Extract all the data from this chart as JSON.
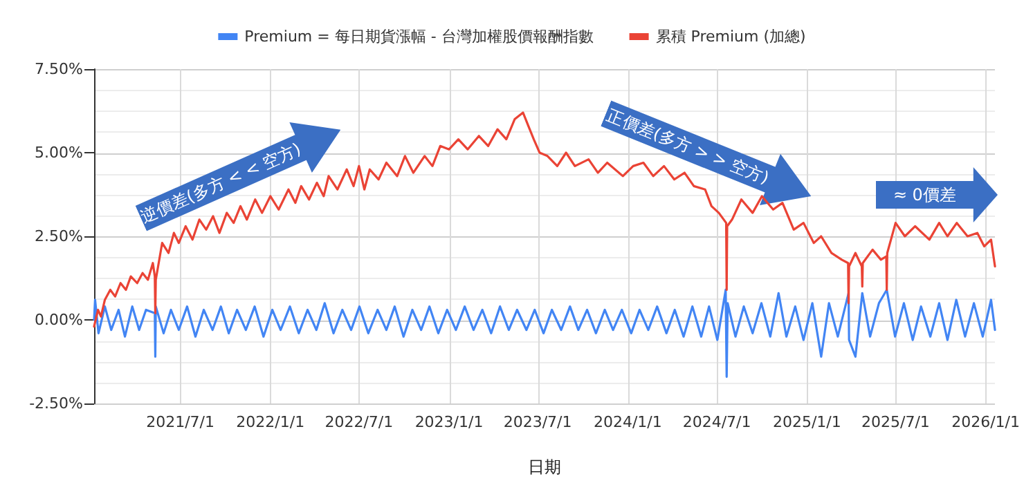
{
  "chart_data": {
    "type": "line",
    "xlabel": "日期",
    "xlim": [
      "2021-01-06",
      "2026-01-20"
    ],
    "xticks": [
      {
        "value": "2021-07-01",
        "label": "2021/7/1"
      },
      {
        "value": "2022-01-01",
        "label": "2022/1/1"
      },
      {
        "value": "2022-07-01",
        "label": "2022/7/1"
      },
      {
        "value": "2023-01-01",
        "label": "2023/1/1"
      },
      {
        "value": "2023-07-01",
        "label": "2023/7/1"
      },
      {
        "value": "2024-01-01",
        "label": "2024/1/1"
      },
      {
        "value": "2024-07-01",
        "label": "2024/7/1"
      },
      {
        "value": "2025-01-01",
        "label": "2025/1/1"
      },
      {
        "value": "2025-07-01",
        "label": "2025/7/1"
      },
      {
        "value": "2026-01-01",
        "label": "2026/1/1"
      }
    ],
    "ylim": [
      -2.5,
      7.5
    ],
    "yticks": [
      {
        "value": -2.5,
        "label": "-2.50%"
      },
      {
        "value": 0,
        "label": "0.00%"
      },
      {
        "value": 2.5,
        "label": "2.50%"
      },
      {
        "value": 5,
        "label": "5.00%"
      },
      {
        "value": 7.5,
        "label": "7.50%"
      }
    ],
    "grid": true,
    "legend": "top",
    "marker": "none",
    "line_style": "solid",
    "annotations": [
      "逆價差(多方 < < 空方)",
      "正價差(多方 > > 空方)",
      "≈ 0價差"
    ],
    "series": [
      {
        "name": "Premium = 每日期貨漲幅 - 台灣加權股價報酬指數",
        "color": "#4285f4",
        "x": [
          "2021-01-06",
          "2021-01-08",
          "2021-01-15",
          "2021-01-28",
          "2021-02-10",
          "2021-02-25",
          "2021-03-10",
          "2021-03-25",
          "2021-04-08",
          "2021-04-22",
          "2021-05-10",
          "2021-05-11",
          "2021-05-12",
          "2021-05-28",
          "2021-06-12",
          "2021-06-28",
          "2021-07-15",
          "2021-08-01",
          "2021-08-18",
          "2021-09-05",
          "2021-09-22",
          "2021-10-08",
          "2021-10-25",
          "2021-11-12",
          "2021-11-30",
          "2021-12-18",
          "2022-01-05",
          "2022-01-22",
          "2022-02-10",
          "2022-02-28",
          "2022-03-18",
          "2022-04-05",
          "2022-04-22",
          "2022-05-10",
          "2022-05-28",
          "2022-06-15",
          "2022-07-02",
          "2022-07-20",
          "2022-08-08",
          "2022-08-26",
          "2022-09-12",
          "2022-09-30",
          "2022-10-18",
          "2022-11-05",
          "2022-11-22",
          "2022-12-10",
          "2022-12-28",
          "2023-01-15",
          "2023-02-02",
          "2023-02-20",
          "2023-03-10",
          "2023-03-28",
          "2023-04-15",
          "2023-05-03",
          "2023-05-20",
          "2023-06-08",
          "2023-06-25",
          "2023-07-13",
          "2023-07-30",
          "2023-08-18",
          "2023-09-05",
          "2023-09-22",
          "2023-10-10",
          "2023-10-28",
          "2023-11-15",
          "2023-12-02",
          "2023-12-20",
          "2024-01-08",
          "2024-01-25",
          "2024-02-12",
          "2024-03-01",
          "2024-03-20",
          "2024-04-06",
          "2024-04-24",
          "2024-05-12",
          "2024-05-30",
          "2024-06-15",
          "2024-07-02",
          "2024-07-19",
          "2024-07-21",
          "2024-07-23",
          "2024-08-08",
          "2024-08-25",
          "2024-09-12",
          "2024-09-30",
          "2024-10-18",
          "2024-11-04",
          "2024-11-20",
          "2024-12-08",
          "2024-12-25",
          "2025-01-12",
          "2025-01-30",
          "2025-02-15",
          "2025-03-05",
          "2025-03-27",
          "2025-03-28",
          "2025-04-10",
          "2025-04-24",
          "2025-05-10",
          "2025-05-28",
          "2025-06-13",
          "2025-06-30",
          "2025-07-18",
          "2025-08-05",
          "2025-08-22",
          "2025-09-10",
          "2025-09-28",
          "2025-10-15",
          "2025-11-02",
          "2025-11-20",
          "2025-12-08",
          "2025-12-26",
          "2026-01-12",
          "2026-01-20"
        ],
        "values": [
          0.0,
          0.6,
          -0.4,
          0.4,
          -0.3,
          0.3,
          -0.5,
          0.4,
          -0.3,
          0.3,
          0.2,
          -1.1,
          0.4,
          -0.4,
          0.3,
          -0.3,
          0.4,
          -0.5,
          0.3,
          -0.3,
          0.4,
          -0.4,
          0.3,
          -0.3,
          0.4,
          -0.5,
          0.3,
          -0.3,
          0.4,
          -0.4,
          0.3,
          -0.3,
          0.5,
          -0.4,
          0.3,
          -0.3,
          0.4,
          -0.4,
          0.3,
          -0.3,
          0.4,
          -0.5,
          0.3,
          -0.3,
          0.4,
          -0.4,
          0.3,
          -0.3,
          0.4,
          -0.3,
          0.3,
          -0.4,
          0.4,
          -0.3,
          0.3,
          -0.3,
          0.3,
          -0.4,
          0.3,
          -0.3,
          0.4,
          -0.3,
          0.3,
          -0.4,
          0.3,
          -0.3,
          0.3,
          -0.4,
          0.3,
          -0.3,
          0.4,
          -0.4,
          0.3,
          -0.5,
          0.4,
          -0.5,
          0.4,
          -0.6,
          0.9,
          -1.7,
          0.5,
          -0.5,
          0.4,
          -0.4,
          0.5,
          -0.5,
          0.8,
          -0.5,
          0.4,
          -0.6,
          0.5,
          -1.1,
          0.5,
          -0.5,
          0.8,
          -0.6,
          -1.1,
          0.8,
          -0.5,
          0.5,
          0.9,
          -0.5,
          0.5,
          -0.6,
          0.4,
          -0.5,
          0.5,
          -0.6,
          0.6,
          -0.5,
          0.5,
          -0.5,
          0.6,
          -0.3
        ]
      },
      {
        "name": "累積 Premium (加總)",
        "color": "#ea4335",
        "x": [
          "2021-01-06",
          "2021-01-14",
          "2021-01-20",
          "2021-01-28",
          "2021-02-08",
          "2021-02-18",
          "2021-03-01",
          "2021-03-12",
          "2021-03-22",
          "2021-04-04",
          "2021-04-15",
          "2021-04-26",
          "2021-05-06",
          "2021-05-10",
          "2021-05-11",
          "2021-05-12",
          "2021-05-25",
          "2021-06-07",
          "2021-06-18",
          "2021-06-28",
          "2021-07-12",
          "2021-07-26",
          "2021-08-09",
          "2021-08-23",
          "2021-09-06",
          "2021-09-19",
          "2021-10-04",
          "2021-10-18",
          "2021-11-01",
          "2021-11-14",
          "2021-12-01",
          "2021-12-15",
          "2022-01-01",
          "2022-01-18",
          "2022-02-07",
          "2022-02-21",
          "2022-03-05",
          "2022-03-21",
          "2022-04-06",
          "2022-04-20",
          "2022-04-30",
          "2022-05-18",
          "2022-06-06",
          "2022-06-20",
          "2022-07-01",
          "2022-07-12",
          "2022-07-23",
          "2022-08-10",
          "2022-08-26",
          "2022-09-17",
          "2022-10-03",
          "2022-10-20",
          "2022-11-12",
          "2022-11-28",
          "2022-12-14",
          "2023-01-01",
          "2023-01-20",
          "2023-02-08",
          "2023-03-03",
          "2023-03-22",
          "2023-04-10",
          "2023-04-28",
          "2023-05-15",
          "2023-06-01",
          "2023-06-12",
          "2023-06-23",
          "2023-07-05",
          "2023-07-21",
          "2023-08-10",
          "2023-08-28",
          "2023-09-15",
          "2023-10-13",
          "2023-11-01",
          "2023-11-20",
          "2023-12-22",
          "2024-01-12",
          "2024-02-02",
          "2024-02-22",
          "2024-03-15",
          "2024-04-05",
          "2024-04-26",
          "2024-05-15",
          "2024-06-07",
          "2024-06-20",
          "2024-07-05",
          "2024-07-20",
          "2024-07-21",
          "2024-07-22",
          "2024-08-01",
          "2024-08-20",
          "2024-09-12",
          "2024-10-01",
          "2024-10-24",
          "2024-11-12",
          "2024-12-05",
          "2024-12-25",
          "2025-01-15",
          "2025-01-30",
          "2025-02-20",
          "2025-03-13",
          "2025-03-26",
          "2025-03-27",
          "2025-03-28",
          "2025-04-10",
          "2025-04-23",
          "2025-04-24",
          "2025-04-25",
          "2025-05-15",
          "2025-06-01",
          "2025-06-12",
          "2025-06-13",
          "2025-06-14",
          "2025-07-01",
          "2025-07-20",
          "2025-08-10",
          "2025-09-08",
          "2025-09-28",
          "2025-10-15",
          "2025-11-03",
          "2025-11-25",
          "2025-12-15",
          "2025-12-29",
          "2026-01-12",
          "2026-01-20"
        ],
        "values": [
          -0.2,
          0.3,
          0.1,
          0.6,
          0.9,
          0.7,
          1.1,
          0.9,
          1.3,
          1.1,
          1.4,
          1.2,
          1.7,
          1.3,
          0.2,
          1.2,
          2.3,
          2.0,
          2.6,
          2.3,
          2.8,
          2.4,
          3.0,
          2.7,
          3.1,
          2.6,
          3.2,
          2.9,
          3.4,
          3.0,
          3.6,
          3.2,
          3.7,
          3.3,
          3.9,
          3.5,
          4.0,
          3.6,
          4.1,
          3.7,
          4.3,
          3.9,
          4.5,
          4.0,
          4.6,
          3.9,
          4.5,
          4.2,
          4.7,
          4.3,
          4.9,
          4.4,
          4.9,
          4.6,
          5.2,
          5.1,
          5.4,
          5.1,
          5.5,
          5.2,
          5.7,
          5.4,
          6.0,
          6.2,
          5.8,
          5.4,
          5.0,
          4.9,
          4.6,
          5.0,
          4.6,
          4.8,
          4.4,
          4.7,
          4.3,
          4.6,
          4.7,
          4.3,
          4.6,
          4.2,
          4.4,
          4.0,
          3.9,
          3.4,
          3.2,
          2.9,
          0.9,
          2.8,
          3.0,
          3.6,
          3.2,
          3.7,
          3.3,
          3.5,
          2.7,
          2.9,
          2.3,
          2.5,
          2.0,
          1.8,
          1.7,
          0.5,
          1.6,
          2.0,
          1.6,
          1.0,
          1.7,
          2.1,
          1.8,
          1.9,
          0.9,
          2.0,
          2.9,
          2.5,
          2.8,
          2.4,
          2.9,
          2.5,
          2.9,
          2.5,
          2.6,
          2.2,
          2.4,
          1.6
        ]
      }
    ]
  }
}
